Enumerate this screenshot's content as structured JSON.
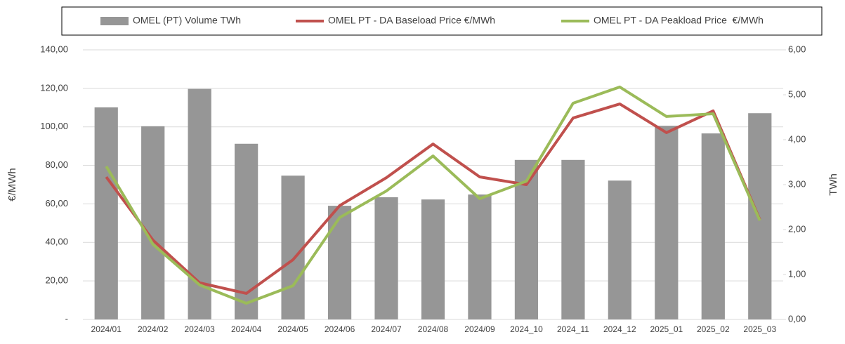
{
  "chart_data": {
    "type": "bar-line",
    "categories": [
      "2024/01",
      "2024/02",
      "2024/03",
      "2024/04",
      "2024/05",
      "2024/06",
      "2024/07",
      "2024/08",
      "2024/09",
      "2024_10",
      "2024_11",
      "2024_12",
      "2025_01",
      "2025_02",
      "2025_03"
    ],
    "series": [
      {
        "name": "OMEL (PT) Volume TWh",
        "type": "bar",
        "axis": "y2",
        "color": "#969696",
        "values": [
          4.72,
          4.3,
          5.13,
          3.91,
          3.2,
          2.53,
          2.72,
          2.67,
          2.78,
          3.55,
          3.55,
          3.09,
          4.31,
          4.14,
          4.59
        ]
      },
      {
        "name": "OMEL PT - DA Baseload Price €/MWh",
        "type": "line",
        "axis": "y",
        "color": "#c0504d",
        "values": [
          74.0,
          41.2,
          19.0,
          13.5,
          31.0,
          59.1,
          73.6,
          91.1,
          74.0,
          70.0,
          104.6,
          111.9,
          97.0,
          108.3,
          51.8
        ]
      },
      {
        "name": "OMEL PT - DA Peakload Price  €/MWh",
        "type": "line",
        "axis": "y",
        "color": "#9bbb59",
        "values": [
          79.5,
          39.0,
          17.9,
          8.4,
          17.5,
          52.9,
          66.7,
          84.9,
          62.7,
          71.8,
          112.3,
          120.7,
          105.4,
          106.8,
          51.4
        ]
      }
    ],
    "ylabel": "€/MWh",
    "y2label": "TWh",
    "ylim": [
      0,
      140
    ],
    "yticks": [
      {
        "value": 0,
        "label": "-"
      },
      {
        "value": 20,
        "label": "20,00"
      },
      {
        "value": 40,
        "label": "40,00"
      },
      {
        "value": 60,
        "label": "60,00"
      },
      {
        "value": 80,
        "label": "80,00"
      },
      {
        "value": 100,
        "label": "100,00"
      },
      {
        "value": 120,
        "label": "120,00"
      },
      {
        "value": 140,
        "label": "140,00"
      }
    ],
    "y2lim": [
      0,
      6
    ],
    "y2ticks": [
      {
        "value": 0,
        "label": "0,00"
      },
      {
        "value": 1,
        "label": "1,00"
      },
      {
        "value": 2,
        "label": "2,00"
      },
      {
        "value": 3,
        "label": "3,00"
      },
      {
        "value": 4,
        "label": "4,00"
      },
      {
        "value": 5,
        "label": "5,00"
      },
      {
        "value": 6,
        "label": "6,00"
      }
    ],
    "grid": true,
    "legend": "top"
  }
}
